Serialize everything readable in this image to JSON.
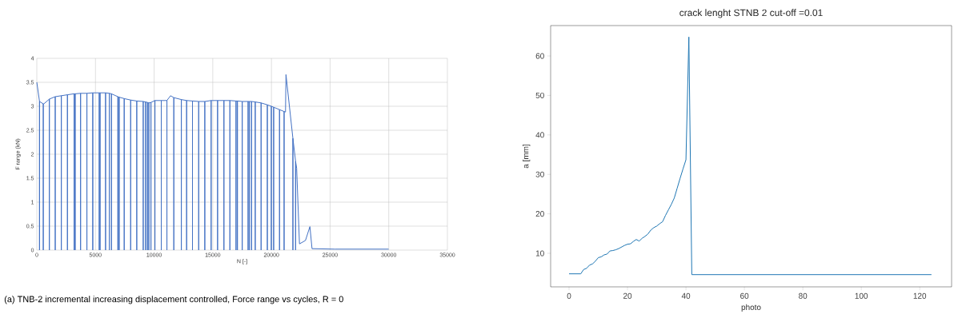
{
  "chart_data": [
    {
      "type": "line",
      "xlabel": "N [-]",
      "ylabel": "F range (kN)",
      "xlim": [
        0,
        35000
      ],
      "xticks": [
        0,
        5000,
        10000,
        15000,
        20000,
        25000,
        30000,
        35000
      ],
      "ylim": [
        0,
        4
      ],
      "yticks": [
        0,
        0.5,
        1,
        1.5,
        2,
        2.5,
        3,
        3.5,
        4
      ],
      "grid": true,
      "series": [
        {
          "color": "#4472c4",
          "x": [
            0,
            230,
            230,
            230,
            550,
            550,
            550,
            600,
            1070,
            1070,
            1070,
            1570,
            1570,
            1570,
            2090,
            2090,
            2090,
            2610,
            2610,
            2610,
            3180,
            3180,
            3180,
            3270,
            3270,
            3270,
            3730,
            3730,
            3730,
            4270,
            4270,
            4270,
            4770,
            4770,
            4770,
            5320,
            5320,
            5320,
            5390,
            5390,
            5390,
            5860,
            5860,
            5860,
            6180,
            6180,
            6180,
            6360,
            6360,
            6360,
            6910,
            6910,
            6910,
            7020,
            7020,
            7020,
            7450,
            7450,
            7450,
            8000,
            8000,
            8000,
            8520,
            8520,
            8520,
            9070,
            9070,
            9070,
            9270,
            9270,
            9270,
            9430,
            9430,
            9430,
            9550,
            9550,
            9550,
            9730,
            9730,
            9730,
            10070,
            10070,
            10070,
            10610,
            10610,
            10610,
            11090,
            11090,
            11090,
            11400,
            11680,
            11680,
            11680,
            12320,
            12320,
            12320,
            12770,
            12770,
            12770,
            13270,
            13270,
            13270,
            13800,
            13800,
            13800,
            14320,
            14320,
            14320,
            14860,
            14860,
            14860,
            15410,
            15410,
            15410,
            15950,
            15950,
            15950,
            16460,
            16460,
            16460,
            16980,
            16980,
            16980,
            17100,
            17100,
            17100,
            17510,
            17510,
            17510,
            18010,
            18010,
            18010,
            18120,
            18120,
            18120,
            18300,
            18300,
            18300,
            18620,
            18620,
            18620,
            19120,
            19120,
            19120,
            19650,
            19650,
            19650,
            19990,
            19990,
            19990,
            20190,
            20190,
            20190,
            20690,
            20690,
            20690,
            21080,
            21080,
            21080,
            21200,
            21240,
            21830,
            21830,
            21830,
            22060,
            22060,
            22060,
            22150,
            22390,
            22900,
            23280,
            23460,
            25400,
            28900,
            29990
          ],
          "values": [
            3.5,
            3.1,
            0,
            3.1,
            3.05,
            0,
            3.05,
            3.05,
            3.15,
            0,
            3.15,
            3.2,
            0,
            3.2,
            3.22,
            0,
            3.22,
            3.24,
            0,
            3.24,
            3.26,
            0,
            3.26,
            3.26,
            0,
            3.26,
            3.27,
            0,
            3.27,
            3.27,
            0,
            3.27,
            3.28,
            0,
            3.28,
            3.28,
            0,
            3.28,
            3.28,
            0,
            3.28,
            3.28,
            0,
            3.28,
            3.27,
            0,
            3.27,
            3.26,
            0,
            3.26,
            3.2,
            0,
            3.2,
            3.19,
            0,
            3.19,
            3.16,
            0,
            3.16,
            3.13,
            0,
            3.13,
            3.11,
            0,
            3.11,
            3.1,
            0,
            3.1,
            3.09,
            0,
            3.09,
            3.08,
            0,
            3.08,
            3.07,
            0,
            3.07,
            3.08,
            0,
            3.08,
            3.12,
            0,
            3.12,
            3.12,
            0,
            3.12,
            3.12,
            0,
            3.12,
            3.22,
            3.18,
            0,
            3.18,
            3.14,
            0,
            3.14,
            3.12,
            0,
            3.12,
            3.11,
            0,
            3.11,
            3.1,
            0,
            3.1,
            3.1,
            0,
            3.1,
            3.12,
            0,
            3.12,
            3.12,
            0,
            3.12,
            3.12,
            0,
            3.12,
            3.12,
            0,
            3.12,
            3.11,
            0,
            3.11,
            3.11,
            0,
            3.11,
            3.1,
            0,
            3.1,
            3.1,
            0,
            3.1,
            3.1,
            0,
            3.1,
            3.1,
            0,
            3.1,
            3.09,
            0,
            3.09,
            3.07,
            0,
            3.07,
            3.03,
            0,
            3.03,
            3.0,
            0,
            3.0,
            2.98,
            0,
            2.98,
            2.93,
            0,
            2.93,
            2.89,
            0,
            2.89,
            2.88,
            3.66,
            2.33,
            0,
            2.33,
            1.85,
            0,
            1.85,
            1.71,
            0.13,
            0.2,
            0.49,
            0.03,
            0.02,
            0.02,
            0.02
          ]
        }
      ],
      "annotations": [
        "(a) TNB-2 incremental increasing displacement controlled, Force range vs cycles, R = 0"
      ]
    },
    {
      "type": "line",
      "title": "crack lenght STNB 2 cut-off =0.01",
      "xlabel": "photo",
      "ylabel": "a [mm]",
      "xlim": [
        -6.3,
        130.9
      ],
      "xticks": [
        0,
        20,
        40,
        60,
        80,
        100,
        120
      ],
      "ylim": [
        1.5,
        67.7
      ],
      "yticks": [
        10,
        20,
        30,
        40,
        50,
        60
      ],
      "series": [
        {
          "color": "#1f77b4",
          "x": [
            0,
            1,
            2,
            3,
            4,
            5,
            6,
            7,
            8,
            9,
            10,
            11,
            12,
            13,
            14,
            15,
            16,
            17,
            18,
            19,
            20,
            21,
            22,
            23,
            24,
            25,
            26,
            27,
            28,
            29,
            30,
            31,
            32,
            33,
            34,
            35,
            36,
            37,
            38,
            39,
            40,
            41,
            42,
            124
          ],
          "values": [
            4.8,
            4.8,
            4.8,
            4.8,
            4.8,
            5.9,
            6.2,
            7.0,
            7.3,
            8.0,
            8.9,
            9.1,
            9.6,
            9.8,
            10.6,
            10.7,
            10.9,
            11.2,
            11.6,
            12.0,
            12.3,
            12.4,
            13.0,
            13.5,
            13.1,
            13.8,
            14.3,
            14.9,
            15.9,
            16.5,
            16.9,
            17.5,
            18.0,
            19.6,
            21.0,
            22.4,
            24.0,
            26.5,
            29.0,
            31.4,
            33.7,
            64.8,
            4.6,
            4.6
          ]
        }
      ]
    }
  ]
}
